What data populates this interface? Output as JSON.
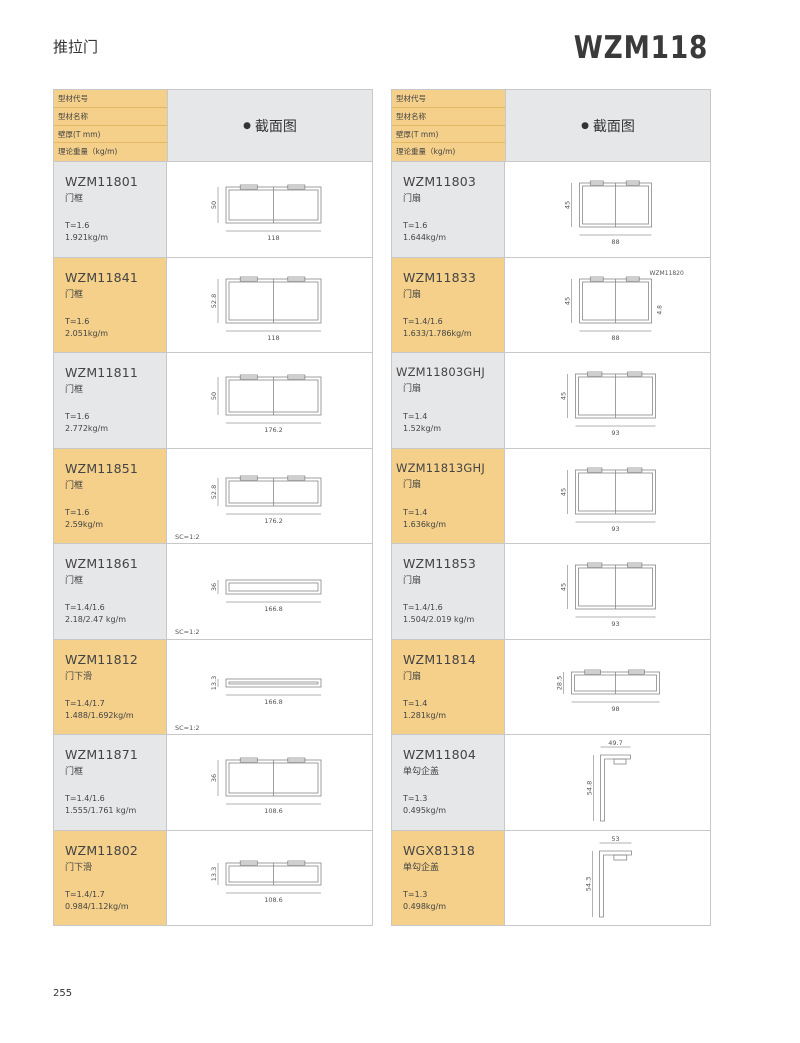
{
  "header": {
    "category": "推拉门",
    "series": "WZM118"
  },
  "table_header": {
    "labels": [
      "型材代号",
      "型材名称",
      "壁厚(T mm)",
      "理论重量（kg/m)"
    ],
    "title": "截面图",
    "bullet": "●"
  },
  "page_number": "255",
  "colors": {
    "yellow": "#f4d08a",
    "grey": "#e6e7e9",
    "border": "#c8c8c8"
  },
  "left": [
    {
      "code": "WZM11801",
      "name": "门框",
      "t": "T=1.6",
      "weight": "1.921kg/m",
      "height": "50",
      "width": "118",
      "sc": ""
    },
    {
      "code": "WZM11841",
      "name": "门框",
      "t": "T=1.6",
      "weight": "2.051kg/m",
      "height": "52.8",
      "width": "118",
      "sc": ""
    },
    {
      "code": "WZM11811",
      "name": "门框",
      "t": "T=1.6",
      "weight": "2.772kg/m",
      "height": "50",
      "width": "176.2",
      "sc": ""
    },
    {
      "code": "WZM11851",
      "name": "门框",
      "t": "T=1.6",
      "weight": "2.59kg/m",
      "height": "52.8",
      "width": "176.2",
      "sc": "SC=1:2"
    },
    {
      "code": "WZM11861",
      "name": "门框",
      "t": "T=1.4/1.6",
      "weight": "2.18/2.47 kg/m",
      "height": "36",
      "width": "166.8",
      "sc": "SC=1:2"
    },
    {
      "code": "WZM11812",
      "name": "门下滑",
      "t": "T=1.4/1.7",
      "weight": "1.488/1.692kg/m",
      "height": "13.3",
      "width": "166.8",
      "sc": "SC=1:2"
    },
    {
      "code": "WZM11871",
      "name": "门框",
      "t": "T=1.4/1.6",
      "weight": "1.555/1.761 kg/m",
      "height": "36",
      "width": "108.6",
      "sc": ""
    },
    {
      "code": "WZM11802",
      "name": "门下滑",
      "t": "T=1.4/1.7",
      "weight": "0.984/1.12kg/m",
      "height": "13.3",
      "width": "108.6",
      "sc": ""
    }
  ],
  "right": [
    {
      "code": "WZM11803",
      "name": "门扇",
      "t": "T=1.6",
      "weight": "1.644kg/m",
      "height": "45",
      "width": "88",
      "sc": ""
    },
    {
      "code": "WZM11833",
      "name": "门扇",
      "t": "T=1.4/1.6",
      "weight": "1.633/1.786kg/m",
      "height": "45",
      "width": "88",
      "sc": "",
      "note": "WZM11820",
      "note_dim": "4.8"
    },
    {
      "code": "WZM11803GHJ",
      "name": "门扇",
      "t": "T=1.4",
      "weight": "1.52kg/m",
      "height": "45",
      "width": "93",
      "sc": ""
    },
    {
      "code": "WZM11813GHJ",
      "name": "门扇",
      "t": "T=1.4",
      "weight": "1.636kg/m",
      "height": "45",
      "width": "93",
      "sc": ""
    },
    {
      "code": "WZM11853",
      "name": "门扇",
      "t": "T=1.4/1.6",
      "weight": "1.504/2.019 kg/m",
      "height": "45",
      "width": "93",
      "sc": ""
    },
    {
      "code": "WZM11814",
      "name": "门扇",
      "t": "T=1.4",
      "weight": "1.281kg/m",
      "height": "28.5",
      "width": "98",
      "sc": ""
    },
    {
      "code": "WZM11804",
      "name": "单勾企盖",
      "t": "T=1.3",
      "weight": "0.495kg/m",
      "height": "54.8",
      "width": "49.7",
      "sc": ""
    },
    {
      "code": "WGX81318",
      "name": "单勾企盖",
      "t": "T=1.3",
      "weight": "0.498kg/m",
      "height": "54.3",
      "width": "53",
      "sc": ""
    }
  ]
}
